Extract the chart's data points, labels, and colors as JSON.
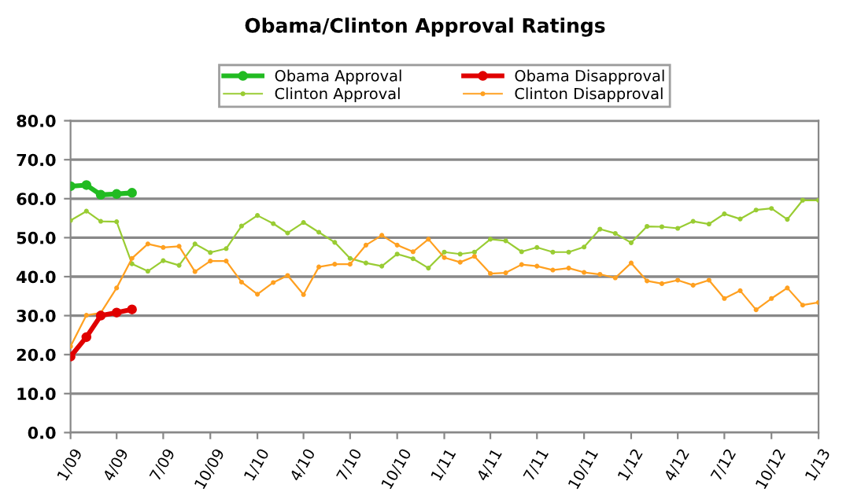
{
  "chart_data": {
    "type": "line",
    "title": "Obama/Clinton Approval Ratings",
    "x": [
      "2009-01",
      "2009-02",
      "2009-03",
      "2009-04",
      "2009-05",
      "2009-06",
      "2009-07",
      "2009-08",
      "2009-09",
      "2009-10",
      "2009-11",
      "2009-12",
      "2010-01",
      "2010-02",
      "2010-03",
      "2010-04",
      "2010-05",
      "2010-06",
      "2010-07",
      "2010-08",
      "2010-09",
      "2010-10",
      "2010-11",
      "2010-12",
      "2011-01",
      "2011-02",
      "2011-03",
      "2011-04",
      "2011-05",
      "2011-06",
      "2011-07",
      "2011-08",
      "2011-09",
      "2011-10",
      "2011-11",
      "2011-12",
      "2012-01",
      "2012-02",
      "2012-03",
      "2012-04",
      "2012-05",
      "2012-06",
      "2012-07",
      "2012-08",
      "2012-09",
      "2012-10",
      "2012-11",
      "2012-12",
      "2013-01"
    ],
    "series": [
      {
        "name": "Obama Approval",
        "color": "#22bb22",
        "marker": "circle",
        "x": [
          "2009-01",
          "2009-02",
          "2009-03",
          "2009-04",
          "2009-05"
        ],
        "values": [
          63.2,
          63.5,
          61.0,
          61.2,
          61.5
        ]
      },
      {
        "name": "Obama Disapproval",
        "color": "#e00000",
        "marker": "circle",
        "x": [
          "2009-01",
          "2009-02",
          "2009-03",
          "2009-04",
          "2009-05"
        ],
        "values": [
          19.5,
          24.5,
          30.0,
          30.8,
          31.6
        ]
      },
      {
        "name": "Clinton Approval",
        "color": "#99cc33",
        "marker": "circle",
        "values": [
          54.4,
          56.8,
          54.2,
          54.1,
          43.3,
          41.4,
          44.1,
          42.9,
          48.4,
          46.2,
          47.2,
          53.0,
          55.7,
          53.6,
          51.2,
          53.9,
          51.4,
          48.8,
          44.7,
          43.5,
          42.7,
          45.8,
          44.6,
          42.2,
          46.3,
          45.8,
          46.3,
          49.6,
          49.2,
          46.4,
          47.5,
          46.3,
          46.3,
          47.6,
          52.2,
          51.1,
          48.7,
          52.9,
          52.8,
          52.4,
          54.2,
          53.5,
          56.1,
          54.8,
          57.1,
          57.5,
          54.7,
          59.6,
          59.6
        ]
      },
      {
        "name": "Clinton Disapproval",
        "color": "#ffa020",
        "marker": "circle",
        "values": [
          22.1,
          30.1,
          30.7,
          37.1,
          44.7,
          48.4,
          47.5,
          47.8,
          41.3,
          44.0,
          44.0,
          38.6,
          35.5,
          38.5,
          40.3,
          35.4,
          42.5,
          43.2,
          43.2,
          48.1,
          50.6,
          48.1,
          46.4,
          49.6,
          44.9,
          43.7,
          45.2,
          40.8,
          41.0,
          43.1,
          42.7,
          41.7,
          42.2,
          41.1,
          40.6,
          39.7,
          43.5,
          38.9,
          38.2,
          39.1,
          37.8,
          39.1,
          34.4,
          36.4,
          31.5,
          34.4,
          37.1,
          32.7,
          33.4
        ]
      }
    ],
    "xlim": [
      "2009-01",
      "2013-01"
    ],
    "xticks": [
      {
        "value": "2009-01",
        "label": "1/09"
      },
      {
        "value": "2009-04",
        "label": "4/09"
      },
      {
        "value": "2009-07",
        "label": "7/09"
      },
      {
        "value": "2009-10",
        "label": "10/09"
      },
      {
        "value": "2010-01",
        "label": "1/10"
      },
      {
        "value": "2010-04",
        "label": "4/10"
      },
      {
        "value": "2010-07",
        "label": "7/10"
      },
      {
        "value": "2010-10",
        "label": "10/10"
      },
      {
        "value": "2011-01",
        "label": "1/11"
      },
      {
        "value": "2011-04",
        "label": "4/11"
      },
      {
        "value": "2011-07",
        "label": "7/11"
      },
      {
        "value": "2011-10",
        "label": "10/11"
      },
      {
        "value": "2012-01",
        "label": "1/12"
      },
      {
        "value": "2012-04",
        "label": "4/12"
      },
      {
        "value": "2012-07",
        "label": "7/12"
      },
      {
        "value": "2012-10",
        "label": "10/12"
      },
      {
        "value": "2013-01",
        "label": "1/13"
      }
    ],
    "ylim": [
      0,
      80
    ],
    "yticks": [
      {
        "value": 0,
        "label": "0.0"
      },
      {
        "value": 10,
        "label": "10.0"
      },
      {
        "value": 20,
        "label": "20.0"
      },
      {
        "value": 30,
        "label": "30.0"
      },
      {
        "value": 40,
        "label": "40.0"
      },
      {
        "value": 50,
        "label": "50.0"
      },
      {
        "value": 60,
        "label": "60.0"
      },
      {
        "value": 70,
        "label": "70.0"
      },
      {
        "value": 80,
        "label": "80.0"
      }
    ],
    "grid": "y",
    "legend": "top"
  }
}
